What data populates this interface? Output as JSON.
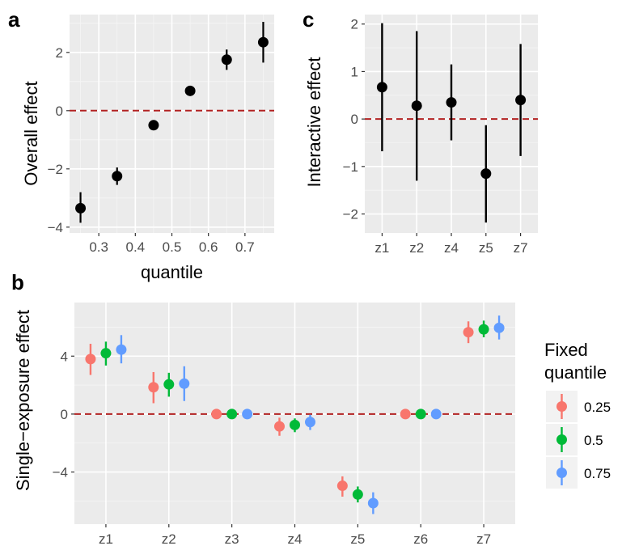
{
  "panel_tags": {
    "a": "a",
    "b": "b",
    "c": "c"
  },
  "chart_data": [
    {
      "panel": "a",
      "type": "scatter",
      "xlabel": "quantile",
      "ylabel": "Overall effect",
      "xlim": [
        0.22,
        0.78
      ],
      "ylim": [
        -4.2,
        3.3
      ],
      "xticks": [
        0.3,
        0.4,
        0.5,
        0.6,
        0.7
      ],
      "xtick_labels": [
        "0.3",
        "0.4",
        "0.5",
        "0.6",
        "0.7"
      ],
      "yticks": [
        -4,
        -2,
        0,
        2
      ],
      "ytick_labels": [
        "−4",
        "−2",
        "0",
        "2"
      ],
      "reference_line": 0,
      "points": [
        {
          "x": 0.25,
          "y": -3.35,
          "lo": -3.85,
          "hi": -2.8
        },
        {
          "x": 0.35,
          "y": -2.25,
          "lo": -2.55,
          "hi": -1.95
        },
        {
          "x": 0.45,
          "y": -0.5,
          "lo": -0.5,
          "hi": -0.5
        },
        {
          "x": 0.55,
          "y": 0.68,
          "lo": 0.68,
          "hi": 0.68
        },
        {
          "x": 0.65,
          "y": 1.75,
          "lo": 1.4,
          "hi": 2.1
        },
        {
          "x": 0.75,
          "y": 2.35,
          "lo": 1.65,
          "hi": 3.05
        }
      ],
      "grid": true,
      "colors": {
        "point": "#000000",
        "ref_line": "#b22222",
        "panel_bg": "#ebebeb"
      }
    },
    {
      "panel": "c",
      "type": "scatter",
      "xlabel": "",
      "ylabel": "Interactive effect",
      "categories": [
        "z1",
        "z2",
        "z4",
        "z5",
        "z7"
      ],
      "ylim": [
        -2.4,
        2.2
      ],
      "yticks": [
        -2,
        -1,
        0,
        1,
        2
      ],
      "ytick_labels": [
        "−2",
        "−1",
        "0",
        "1",
        "2"
      ],
      "reference_line": 0,
      "points": [
        {
          "x": "z1",
          "y": 0.67,
          "lo": -0.68,
          "hi": 2.02
        },
        {
          "x": "z2",
          "y": 0.28,
          "lo": -1.3,
          "hi": 1.85
        },
        {
          "x": "z4",
          "y": 0.35,
          "lo": -0.45,
          "hi": 1.15
        },
        {
          "x": "z5",
          "y": -1.15,
          "lo": -2.18,
          "hi": -0.13
        },
        {
          "x": "z7",
          "y": 0.4,
          "lo": -0.78,
          "hi": 1.58
        }
      ],
      "grid": true,
      "colors": {
        "point": "#000000",
        "ref_line": "#b22222",
        "panel_bg": "#ebebeb"
      }
    },
    {
      "panel": "b",
      "type": "scatter",
      "xlabel": "",
      "ylabel": "Single−exposure effect",
      "categories": [
        "z1",
        "z2",
        "z3",
        "z4",
        "z5",
        "z6",
        "z7"
      ],
      "ylim": [
        -7.6,
        7.7
      ],
      "yticks": [
        -4,
        0,
        4
      ],
      "ytick_labels": [
        "−4",
        "0",
        "4"
      ],
      "reference_line": 0,
      "legend": {
        "title": [
          "Fixed",
          "quantile"
        ],
        "placement": "right"
      },
      "series": [
        {
          "name": "0.25",
          "color": "#f8766d",
          "points": [
            {
              "x": "z1",
              "y": 3.8,
              "lo": 2.7,
              "hi": 4.85
            },
            {
              "x": "z2",
              "y": 1.85,
              "lo": 0.75,
              "hi": 2.9
            },
            {
              "x": "z3",
              "y": 0.0,
              "lo": 0.0,
              "hi": 0.0
            },
            {
              "x": "z4",
              "y": -0.85,
              "lo": -1.5,
              "hi": -0.25
            },
            {
              "x": "z5",
              "y": -4.95,
              "lo": -5.7,
              "hi": -4.3
            },
            {
              "x": "z6",
              "y": 0.0,
              "lo": 0.0,
              "hi": 0.0
            },
            {
              "x": "z7",
              "y": 5.65,
              "lo": 4.9,
              "hi": 6.4
            }
          ]
        },
        {
          "name": "0.5",
          "color": "#00ba38",
          "points": [
            {
              "x": "z1",
              "y": 4.2,
              "lo": 3.35,
              "hi": 5.0
            },
            {
              "x": "z2",
              "y": 2.05,
              "lo": 1.2,
              "hi": 2.85
            },
            {
              "x": "z3",
              "y": 0.0,
              "lo": 0.0,
              "hi": 0.0
            },
            {
              "x": "z4",
              "y": -0.75,
              "lo": -1.25,
              "hi": -0.3
            },
            {
              "x": "z5",
              "y": -5.55,
              "lo": -6.1,
              "hi": -5.0
            },
            {
              "x": "z6",
              "y": 0.0,
              "lo": 0.0,
              "hi": 0.0
            },
            {
              "x": "z7",
              "y": 5.85,
              "lo": 5.3,
              "hi": 6.45
            }
          ]
        },
        {
          "name": "0.75",
          "color": "#619cff",
          "points": [
            {
              "x": "z1",
              "y": 4.45,
              "lo": 3.5,
              "hi": 5.45
            },
            {
              "x": "z2",
              "y": 2.1,
              "lo": 0.9,
              "hi": 3.3
            },
            {
              "x": "z3",
              "y": 0.0,
              "lo": 0.0,
              "hi": 0.0
            },
            {
              "x": "z4",
              "y": -0.55,
              "lo": -1.1,
              "hi": -0.05
            },
            {
              "x": "z5",
              "y": -6.15,
              "lo": -6.9,
              "hi": -5.4
            },
            {
              "x": "z6",
              "y": 0.0,
              "lo": 0.0,
              "hi": 0.0
            },
            {
              "x": "z7",
              "y": 5.95,
              "lo": 5.15,
              "hi": 6.8
            }
          ]
        }
      ],
      "grid": true,
      "colors": {
        "ref_line": "#b22222",
        "panel_bg": "#ebebeb"
      }
    }
  ]
}
